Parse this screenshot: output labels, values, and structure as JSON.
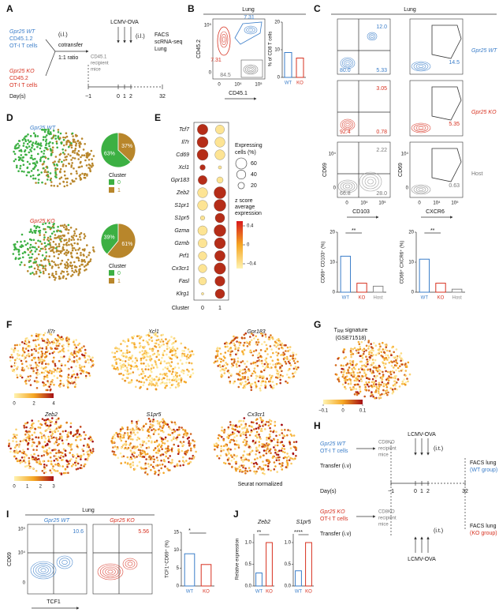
{
  "panel_labels": [
    "A",
    "B",
    "C",
    "D",
    "E",
    "F",
    "G",
    "H",
    "I",
    "J"
  ],
  "A": {
    "wt": [
      "Gpr25 WT",
      "CD45.1.2",
      "OT-I T cells"
    ],
    "ko": [
      "Gpr25 KO",
      "CD45.2",
      "OT-I T cells"
    ],
    "route1": "(i.l.)",
    "cotransfer": "cotransfer",
    "ratio": "1:1 ratio",
    "recipient": [
      "CD45.1",
      "recipient",
      "mice"
    ],
    "infection": "LCMV-OVA",
    "route2": "(i.l.)",
    "readout": [
      "FACS",
      "scRNA-seq",
      "Lung"
    ],
    "days_label": "Day(s)",
    "days": [
      "−1",
      "0",
      "1",
      "2",
      "32"
    ]
  },
  "B": {
    "tissue": "Lung",
    "y_axis": "CD45.2",
    "x_axis": "CD45.1",
    "yticks": [
      "10⁵",
      "0"
    ],
    "xticks": [
      "0",
      "10⁴",
      "10⁵"
    ],
    "gate_wt": "7.31",
    "gate_ko": "7.31",
    "gate_host": "84.5",
    "chart": {
      "type": "bar",
      "ylabel": "% of CD8 T cells",
      "categories": [
        "WT",
        "KO"
      ],
      "values": [
        9,
        7
      ],
      "colors": [
        "#3a7dc9",
        "#d7301f"
      ],
      "ylim": [
        0,
        20
      ],
      "yticks": [
        0,
        10,
        20
      ]
    }
  },
  "C": {
    "tissue": "Lung",
    "rows": [
      {
        "q_upper_right": "12.0",
        "q_lower_left": "80.0",
        "q_lower_right": "5.33",
        "gate": "14.5",
        "group": "Gpr25 WT"
      },
      {
        "q_upper_right": "3.05",
        "q_lower_left": "92.4",
        "q_lower_right": "0.78",
        "gate": "5.35",
        "group": "Gpr25 KO"
      },
      {
        "q_upper_right": "2.22",
        "q_lower_left": "66.8",
        "q_lower_right": "28.0",
        "gate": "0.63",
        "group": "Host"
      }
    ],
    "y_axis": "CD69",
    "x_axis_left": "CD103",
    "x_axis_right": "CXCR6",
    "yticks": [
      "10⁴",
      "0"
    ],
    "xticks": [
      "0",
      "10⁴",
      "10⁵"
    ],
    "chart_left": {
      "type": "bar",
      "ylabel": "CD69⁺ CD103⁺ (%)",
      "sig": "**",
      "categories": [
        "WT",
        "KO",
        "Host"
      ],
      "values": [
        12,
        3,
        2
      ],
      "colors": [
        "#3a7dc9",
        "#d7301f",
        "#888888"
      ],
      "ylim": [
        0,
        20
      ],
      "yticks": [
        0,
        10,
        20
      ]
    },
    "chart_right": {
      "type": "bar",
      "ylabel": "CD69⁺ CXCR6⁺ (%)",
      "sig": "**",
      "categories": [
        "WT",
        "KO",
        "Host"
      ],
      "values": [
        11,
        3,
        1
      ],
      "colors": [
        "#3a7dc9",
        "#d7301f",
        "#888888"
      ],
      "ylim": [
        0,
        20
      ],
      "yticks": [
        0,
        10,
        20
      ]
    }
  },
  "D": {
    "groups": [
      {
        "name": "Gpr25 WT",
        "pie": {
          "type": "pie",
          "values": [
            63,
            37
          ],
          "value_labels": [
            "63%",
            "37%"
          ]
        }
      },
      {
        "name": "Gpr25 KO",
        "pie": {
          "type": "pie",
          "values": [
            39,
            61
          ],
          "value_labels": [
            "39%",
            "61%"
          ]
        }
      }
    ],
    "legend_title": "Cluster",
    "clusters": [
      "0",
      "1"
    ],
    "cluster_colors": [
      "#3cb043",
      "#b8862b"
    ]
  },
  "E": {
    "type": "dot",
    "genes": [
      "Tcf7",
      "Il7r",
      "Cd69",
      "Xcl1",
      "Gpr183",
      "Zeb2",
      "S1pr1",
      "S1pr5",
      "Gzma",
      "Gzmb",
      "Prf1",
      "Cx3cr1",
      "Fasl",
      "Klrg1"
    ],
    "cluster_label": "Cluster",
    "clusters": [
      "0",
      "1"
    ],
    "pct_expressing": [
      [
        55,
        40
      ],
      [
        60,
        50
      ],
      [
        60,
        50
      ],
      [
        15,
        5
      ],
      [
        40,
        20
      ],
      [
        50,
        70
      ],
      [
        50,
        70
      ],
      [
        10,
        45
      ],
      [
        45,
        70
      ],
      [
        40,
        60
      ],
      [
        35,
        55
      ],
      [
        35,
        65
      ],
      [
        30,
        50
      ],
      [
        3,
        45
      ]
    ],
    "zscore": [
      [
        0.5,
        -0.5
      ],
      [
        0.5,
        -0.5
      ],
      [
        0.5,
        -0.5
      ],
      [
        0.5,
        -0.5
      ],
      [
        0.5,
        -0.5
      ],
      [
        -0.5,
        0.5
      ],
      [
        -0.5,
        0.5
      ],
      [
        -0.5,
        0.5
      ],
      [
        -0.5,
        0.5
      ],
      [
        -0.5,
        0.5
      ],
      [
        -0.5,
        0.5
      ],
      [
        -0.5,
        0.5
      ],
      [
        -0.5,
        0.5
      ],
      [
        -0.5,
        0.5
      ]
    ],
    "size_legend_title": [
      "Expressing",
      "cells (%)"
    ],
    "size_legend": [
      60,
      40,
      20
    ],
    "color_legend_title": [
      "z score",
      "average",
      "expression"
    ],
    "color_legend": [
      0.4,
      0,
      {
        "value": -0.4,
        "label": "−0.4"
      }
    ],
    "zlim": [
      -0.5,
      0.5
    ]
  },
  "F": {
    "maps": [
      {
        "gene": "Il7r"
      },
      {
        "gene": "Xcl1"
      },
      {
        "gene": "Gpr183"
      },
      {
        "gene": "Zeb2"
      },
      {
        "gene": "S1pr5"
      },
      {
        "gene": "Cx3cr1"
      }
    ],
    "scale_top": [
      0,
      2,
      4
    ],
    "scale_bottom": [
      0,
      1,
      2,
      3
    ],
    "scale_label": "Seurat normalized"
  },
  "G": {
    "title_main": "T",
    "title_sub": "RM",
    "title_rest": "signature",
    "source": "(GSE71518)",
    "scale": [
      {
        "value": -0.1,
        "label": "−0.1"
      },
      0,
      0.1
    ]
  },
  "H": {
    "wt": [
      "Gpr25 WT",
      "OT-I T cells"
    ],
    "ko": [
      "Gpr25 KO",
      "OT-I T cells"
    ],
    "transfer": "Transfer (i.v)",
    "recipient": [
      "CD8KO",
      "recipient",
      "mice"
    ],
    "infection": "LCMV-OVA",
    "route": "(i.t.)",
    "days_label": "Day(s)",
    "days": [
      "−1",
      "0",
      "1",
      "2",
      "32"
    ],
    "readout": "FACS lung",
    "wt_group": "(WT group)",
    "ko_group": "(KO group)"
  },
  "I": {
    "tissue": "Lung",
    "groups": [
      "Gpr25 WT",
      "Gpr25 KO"
    ],
    "gates": [
      "10.6",
      "5.56"
    ],
    "y_axis": "CD69",
    "x_axis": "TCF1",
    "yticks": [
      "10⁵",
      "10⁴",
      "0"
    ],
    "chart": {
      "type": "bar",
      "ylabel": "TCF1⁺CD69⁺ (%)",
      "sig": "*",
      "categories": [
        "WT",
        "KO"
      ],
      "values": [
        9,
        6
      ],
      "colors": [
        "#3a7dc9",
        "#d7301f"
      ],
      "ylim": [
        0,
        15
      ],
      "yticks": [
        0,
        5,
        10,
        15
      ]
    }
  },
  "J": {
    "ylabel": "Relative expression",
    "charts": [
      {
        "type": "bar",
        "title": "Zeb2",
        "sig": "**",
        "categories": [
          "WT",
          "KO"
        ],
        "values": [
          0.3,
          1.0
        ],
        "colors": [
          "#3a7dc9",
          "#d7301f"
        ],
        "ylim": [
          0,
          1.2
        ],
        "yticks": [
          {
            "value": 0,
            "label": "0.0"
          },
          0.5,
          {
            "value": 1,
            "label": "1.0"
          }
        ]
      },
      {
        "type": "bar",
        "title": "S1pr5",
        "sig": "****",
        "categories": [
          "WT",
          "KO"
        ],
        "values": [
          0.35,
          1.0
        ],
        "colors": [
          "#3a7dc9",
          "#d7301f"
        ],
        "ylim": [
          0,
          1.2
        ],
        "yticks": [
          {
            "value": 0,
            "label": "0.0"
          },
          0.5,
          {
            "value": 1,
            "label": "1.0"
          }
        ]
      }
    ]
  }
}
